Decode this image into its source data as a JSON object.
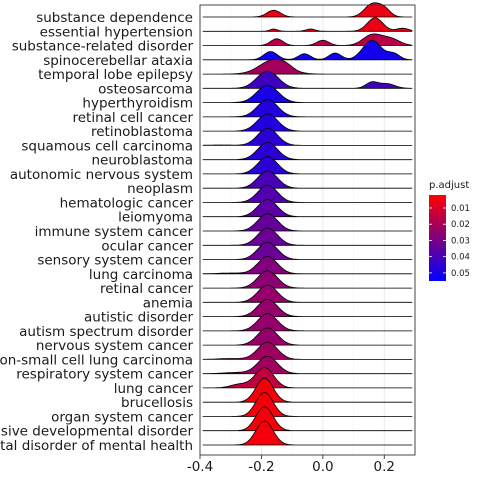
{
  "chart_data": {
    "type": "ridgeline",
    "title": "",
    "xlabel": "",
    "ylabel": "",
    "xlim": [
      -0.4,
      0.3
    ],
    "x_ticks": [
      -0.4,
      -0.2,
      0.0,
      0.2
    ],
    "x_tick_labels": [
      "-0.4",
      "-0.2",
      "0.0",
      "0.2"
    ],
    "grid": true,
    "legend": {
      "title": "p.adjust",
      "position": "right",
      "ticks": [
        0.01,
        0.02,
        0.03,
        0.04,
        0.05
      ],
      "tick_labels": [
        "0.01",
        "0.02",
        "0.03",
        "0.04",
        "0.05"
      ],
      "range": [
        0.002,
        0.055
      ],
      "low_color": "#FF0000",
      "high_color": "#0000FF"
    },
    "series": [
      {
        "name": "substance dependence",
        "p_adjust": 0.006,
        "peaks": [
          [
            -0.16,
            0.022,
            0.45
          ],
          [
            0.16,
            0.025,
            0.85
          ],
          [
            0.2,
            0.02,
            0.5
          ]
        ]
      },
      {
        "name": "essential hypertension",
        "p_adjust": 0.006,
        "peaks": [
          [
            -0.16,
            0.012,
            0.15
          ],
          [
            -0.04,
            0.015,
            0.15
          ],
          [
            0.17,
            0.025,
            0.9
          ],
          [
            0.26,
            0.02,
            0.2
          ]
        ]
      },
      {
        "name": "substance-related disorder",
        "p_adjust": 0.017,
        "peaks": [
          [
            -0.15,
            0.02,
            0.45
          ],
          [
            0.0,
            0.02,
            0.35
          ],
          [
            0.16,
            0.03,
            0.7
          ],
          [
            0.22,
            0.03,
            0.45
          ]
        ]
      },
      {
        "name": "spinocerebellar ataxia",
        "p_adjust": 0.051,
        "peaks": [
          [
            -0.17,
            0.022,
            0.55
          ],
          [
            -0.06,
            0.02,
            0.4
          ],
          [
            0.04,
            0.02,
            0.45
          ],
          [
            0.16,
            0.03,
            1.3
          ],
          [
            0.23,
            0.02,
            0.4
          ]
        ]
      },
      {
        "name": "temporal lobe epilepsy",
        "p_adjust": 0.021,
        "peaks": [
          [
            -0.16,
            0.045,
            0.95
          ],
          [
            -0.12,
            0.02,
            0.15
          ]
        ]
      },
      {
        "name": "osteosarcoma",
        "p_adjust": 0.042,
        "peaks": [
          [
            -0.18,
            0.035,
            1.15
          ],
          [
            0.16,
            0.02,
            0.4
          ],
          [
            0.21,
            0.025,
            0.3
          ]
        ]
      },
      {
        "name": "hyperthyroidism",
        "p_adjust": 0.05,
        "peaks": [
          [
            -0.18,
            0.035,
            1.15
          ]
        ]
      },
      {
        "name": "retinal cell cancer",
        "p_adjust": 0.048,
        "peaks": [
          [
            -0.18,
            0.033,
            1.15
          ]
        ]
      },
      {
        "name": "retinoblastoma",
        "p_adjust": 0.048,
        "peaks": [
          [
            -0.18,
            0.033,
            1.15
          ]
        ]
      },
      {
        "name": "squamous cell carcinoma",
        "p_adjust": 0.046,
        "peaks": [
          [
            -0.18,
            0.032,
            1.15
          ],
          [
            -0.33,
            0.04,
            0.03
          ]
        ]
      },
      {
        "name": "neuroblastoma",
        "p_adjust": 0.046,
        "peaks": [
          [
            -0.18,
            0.032,
            1.15
          ]
        ]
      },
      {
        "name": "autonomic nervous system",
        "p_adjust": 0.046,
        "peaks": [
          [
            -0.18,
            0.032,
            1.15
          ]
        ]
      },
      {
        "name": "neoplasm",
        "p_adjust": 0.04,
        "peaks": [
          [
            -0.18,
            0.032,
            1.15
          ]
        ]
      },
      {
        "name": "hematologic cancer",
        "p_adjust": 0.038,
        "peaks": [
          [
            -0.18,
            0.032,
            1.15
          ]
        ]
      },
      {
        "name": "leiomyoma",
        "p_adjust": 0.036,
        "peaks": [
          [
            -0.18,
            0.032,
            1.15
          ]
        ]
      },
      {
        "name": "immune system cancer",
        "p_adjust": 0.034,
        "peaks": [
          [
            -0.18,
            0.032,
            1.15
          ]
        ]
      },
      {
        "name": "ocular cancer",
        "p_adjust": 0.033,
        "peaks": [
          [
            -0.18,
            0.032,
            1.15
          ]
        ]
      },
      {
        "name": "sensory system cancer",
        "p_adjust": 0.033,
        "peaks": [
          [
            -0.18,
            0.032,
            1.15
          ]
        ]
      },
      {
        "name": "lung carcinoma",
        "p_adjust": 0.028,
        "peaks": [
          [
            -0.18,
            0.032,
            1.15
          ],
          [
            -0.3,
            0.04,
            0.05
          ]
        ]
      },
      {
        "name": "retinal cancer",
        "p_adjust": 0.026,
        "peaks": [
          [
            -0.18,
            0.032,
            1.15
          ]
        ]
      },
      {
        "name": "anemia",
        "p_adjust": 0.024,
        "peaks": [
          [
            -0.18,
            0.032,
            1.15
          ]
        ]
      },
      {
        "name": "autistic disorder",
        "p_adjust": 0.024,
        "peaks": [
          [
            -0.18,
            0.032,
            1.15
          ]
        ]
      },
      {
        "name": "autism spectrum disorder",
        "p_adjust": 0.024,
        "peaks": [
          [
            -0.18,
            0.032,
            1.15
          ]
        ]
      },
      {
        "name": "nervous system cancer",
        "p_adjust": 0.024,
        "peaks": [
          [
            -0.18,
            0.032,
            1.15
          ]
        ]
      },
      {
        "name": "non-small cell lung carcinoma",
        "p_adjust": 0.022,
        "peaks": [
          [
            -0.18,
            0.032,
            1.15
          ],
          [
            -0.3,
            0.04,
            0.06
          ]
        ]
      },
      {
        "name": "respiratory system cancer",
        "p_adjust": 0.022,
        "peaks": [
          [
            -0.18,
            0.032,
            1.15
          ],
          [
            -0.28,
            0.04,
            0.08
          ]
        ]
      },
      {
        "name": "lung cancer",
        "p_adjust": 0.015,
        "peaks": [
          [
            -0.19,
            0.03,
            1.35
          ],
          [
            -0.27,
            0.03,
            0.25
          ]
        ]
      },
      {
        "name": "brucellosis",
        "p_adjust": 0.004,
        "peaks": [
          [
            -0.19,
            0.028,
            1.6
          ]
        ]
      },
      {
        "name": "organ system cancer",
        "p_adjust": 0.004,
        "peaks": [
          [
            -0.19,
            0.028,
            1.6
          ]
        ]
      },
      {
        "name": "pervasive developmental disorder",
        "p_adjust": 0.004,
        "peaks": [
          [
            -0.19,
            0.028,
            1.6
          ]
        ]
      },
      {
        "name": "developmental disorder of mental health",
        "p_adjust": 0.004,
        "peaks": [
          [
            -0.19,
            0.028,
            1.6
          ]
        ]
      }
    ]
  }
}
